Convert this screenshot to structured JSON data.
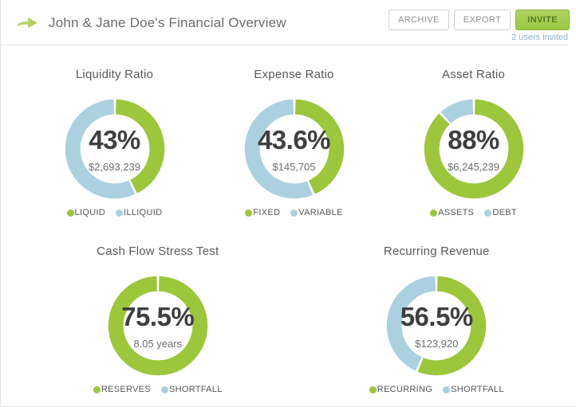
{
  "header": {
    "title": "John & Jane Doe's Financial Overview",
    "buttons": {
      "archive": "ARCHIVE",
      "export": "EXPORT",
      "invite": "INVITE"
    },
    "invite_note": "2 users invited"
  },
  "colors": {
    "green": "#9cc63c",
    "blue": "#abd0e0",
    "invite_green": "#9cc840",
    "note_blue": "#8fb5cf",
    "arrow_green": "#b5d162"
  },
  "chart_data": [
    {
      "type": "pie",
      "title": "Liquidity Ratio",
      "center_value": "43%",
      "center_sub": "$2,693,239",
      "ring": {
        "green_pct": 43,
        "blue_pct": 57
      },
      "legend": [
        "LIQUID",
        "ILLIQUID"
      ]
    },
    {
      "type": "pie",
      "title": "Expense Ratio",
      "center_value": "43.6%",
      "center_sub": "$145,705",
      "ring": {
        "green_pct": 43.6,
        "blue_pct": 56.4
      },
      "legend": [
        "FIXED",
        "VARIABLE"
      ]
    },
    {
      "type": "pie",
      "title": "Asset Ratio",
      "center_value": "88%",
      "center_sub": "$6,245,239",
      "ring": {
        "green_pct": 88,
        "blue_pct": 12
      },
      "legend": [
        "ASSETS",
        "DEBT"
      ]
    },
    {
      "type": "pie",
      "title": "Cash Flow Stress Test",
      "center_value": "75.5%",
      "center_sub": "8.05 years",
      "ring": {
        "green_pct": 100,
        "blue_pct": 0
      },
      "legend": [
        "RESERVES",
        "SHORTFALL"
      ]
    },
    {
      "type": "pie",
      "title": "Recurring Revenue",
      "center_value": "56.5%",
      "center_sub": "$123,920",
      "ring": {
        "green_pct": 56.5,
        "blue_pct": 43.5
      },
      "legend": [
        "RECURRING",
        "SHORTFALL"
      ]
    }
  ]
}
